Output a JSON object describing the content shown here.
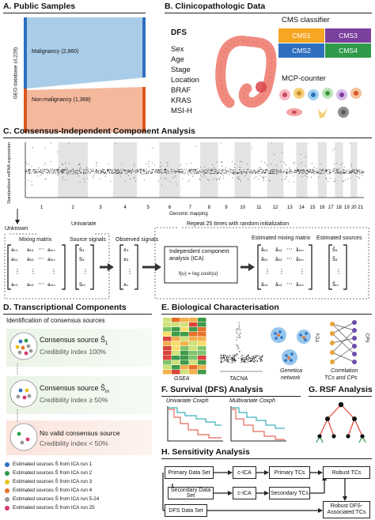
{
  "panel_a": {
    "header": "A. Public Samples",
    "axis_label": "GEO database (4,228)",
    "malignancy": "Malignancy (2,860)",
    "non_malignancy": "Non-malignancy (1,368)"
  },
  "panel_b": {
    "header": "B. Clinicopathologic Data",
    "variables": [
      "DFS",
      "Sex",
      "Age",
      "Stage",
      "Location",
      "BRAF",
      "KRAS",
      "MSI-H"
    ],
    "cms_title": "CMS classifier",
    "cms_labels": [
      "CMS1",
      "CMS3",
      "CMS2",
      "CMS4"
    ],
    "cms_colors": [
      "#f5a623",
      "#7b3f9e",
      "#2e6fc0",
      "#2e9a4a"
    ],
    "mcp_title": "MCP-counter"
  },
  "panel_c": {
    "header": "C. Consensus-Independent Component Analysis",
    "ylabel": "Standardized mRNA expression",
    "xlabel": "Genomic mapping",
    "chromosomes": [
      "1",
      "2",
      "3",
      "4",
      "5",
      "6",
      "7",
      "8",
      "9",
      "10",
      "11",
      "12",
      "13",
      "14",
      "15",
      "16",
      "17",
      "18",
      "19",
      "20",
      "21"
    ],
    "unknown": "Unknown",
    "univariate": "Univariate",
    "mixing_matrix": "Mixing matrix",
    "source_signals": "Source signals",
    "observed_signals": "Observed signals",
    "repeat": "Repeat 25 times with random initialization",
    "ica_line1": "Independent component",
    "ica_line2": "analysis (ICA)",
    "ica_formula": "f(u) = log cosh(u)",
    "estimated_mixing": "Estimated mixing matrix",
    "estimated_sources": "Estimated sources"
  },
  "panel_d": {
    "header": "D. Transcriptional Components",
    "subtitle": "Identification of consensus sources",
    "consensus1": "Consensus source Ŝ",
    "consensus1_sub": "1",
    "cred1": "Credibility index 100%",
    "consensus2": "Consensus source Ŝ",
    "consensus2_sub": "m",
    "cred2": "Credibility index ≥ 50%",
    "novalid": "No valid consensus source",
    "cred3": "Credibility index < 50%",
    "legend": [
      {
        "label": "Estimated sources Ŝ",
        "tail": "from ICA run 1",
        "color": "#2e6fc0"
      },
      {
        "label": "Estimated sources Ŝ",
        "tail": "from ICA run 2",
        "color": "#2e9a4a"
      },
      {
        "label": "Estimated sources Ŝ",
        "tail": "from ICA run 3",
        "color": "#e8c21a"
      },
      {
        "label": "Estimated sources Ŝ",
        "tail": "from ICA run 4",
        "color": "#e8702a"
      },
      {
        "label": "Estimated sources Ŝ",
        "tail": "from ICA run 5-24",
        "color": "#999999"
      },
      {
        "label": "Estimated sources Ŝ",
        "tail": "from ICA run 25",
        "color": "#d63b6a"
      }
    ]
  },
  "panel_e": {
    "header": "E. Biological Characterisation",
    "gsea": "GSEA",
    "tacna": "TACNA",
    "genetica1": "Genetica",
    "genetica2": "network",
    "corr1": "Correlation",
    "corr2": "TCs and CPs",
    "tcs": "TCs",
    "cps": "CPs"
  },
  "panel_f": {
    "header": "F. Survival (DFS) Analysis",
    "uni": "Univariate Coxph",
    "multi": "Multivariate Coxph"
  },
  "panel_g": {
    "header": "G. RSF Analysis"
  },
  "panel_h": {
    "header": "H. Sensitivity Analysis",
    "primary_data": "Primary Data Set",
    "secondary_data": "Secondary Data Set",
    "dfs_data": "DFS Data Set",
    "cica1": "c-ICA",
    "cica2": "c-ICA",
    "primary_tcs": "Primary TCs",
    "secondary_tcs": "Secondary TCs",
    "robust_tcs": "Robust TCs",
    "robust_dfs1": "Robust DFS-",
    "robust_dfs2": "Associated TCs"
  }
}
